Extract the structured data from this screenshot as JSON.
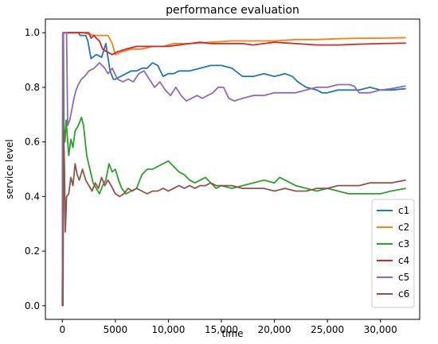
{
  "chart_data": {
    "type": "line",
    "title": "performance evaluation",
    "xlabel": "time",
    "ylabel": "service level",
    "xlim": [
      -1600,
      33700
    ],
    "ylim": [
      -0.05,
      1.05
    ],
    "x_ticks": [
      0,
      5000,
      10000,
      15000,
      20000,
      25000,
      30000
    ],
    "x_tick_labels": [
      "0",
      "5000",
      "10,000",
      "15,000",
      "20,000",
      "25,000",
      "30,000"
    ],
    "y_ticks": [
      0.0,
      0.2,
      0.4,
      0.6,
      0.8,
      1.0
    ],
    "y_tick_labels": [
      "0.0",
      "0.2",
      "0.4",
      "0.6",
      "0.8",
      "1.0"
    ],
    "grid": false,
    "legend_position": "lower-right",
    "series": [
      {
        "name": "c1",
        "color": "#1f77b4",
        "points": [
          [
            0,
            0.0
          ],
          [
            60,
            1.0
          ],
          [
            1500,
            1.0
          ],
          [
            1700,
            0.99
          ],
          [
            2200,
            0.99
          ],
          [
            2400,
            0.97
          ],
          [
            2700,
            0.905
          ],
          [
            3200,
            0.92
          ],
          [
            3700,
            0.91
          ],
          [
            4100,
            0.96
          ],
          [
            4500,
            0.86
          ],
          [
            4800,
            0.83
          ],
          [
            5000,
            0.83
          ],
          [
            5500,
            0.84
          ],
          [
            6000,
            0.85
          ],
          [
            6500,
            0.86
          ],
          [
            7000,
            0.86
          ],
          [
            7500,
            0.87
          ],
          [
            8000,
            0.87
          ],
          [
            8500,
            0.89
          ],
          [
            9000,
            0.88
          ],
          [
            9500,
            0.84
          ],
          [
            10000,
            0.85
          ],
          [
            10500,
            0.85
          ],
          [
            11000,
            0.86
          ],
          [
            12000,
            0.86
          ],
          [
            13000,
            0.87
          ],
          [
            14000,
            0.88
          ],
          [
            15000,
            0.88
          ],
          [
            16000,
            0.87
          ],
          [
            17000,
            0.84
          ],
          [
            18000,
            0.84
          ],
          [
            19000,
            0.85
          ],
          [
            20000,
            0.84
          ],
          [
            21000,
            0.85
          ],
          [
            21700,
            0.84
          ],
          [
            22200,
            0.82
          ],
          [
            23000,
            0.8
          ],
          [
            24000,
            0.79
          ],
          [
            24500,
            0.78
          ],
          [
            25000,
            0.78
          ],
          [
            26000,
            0.79
          ],
          [
            27000,
            0.79
          ],
          [
            28000,
            0.79
          ],
          [
            29000,
            0.8
          ],
          [
            30000,
            0.79
          ],
          [
            31000,
            0.79
          ],
          [
            32400,
            0.795
          ]
        ]
      },
      {
        "name": "c2",
        "color": "#ff7f0e",
        "points": [
          [
            0,
            0.0
          ],
          [
            60,
            1.0
          ],
          [
            2000,
            1.0
          ],
          [
            3000,
            0.99
          ],
          [
            3800,
            0.99
          ],
          [
            4300,
            0.99
          ],
          [
            4700,
            0.96
          ],
          [
            5000,
            0.92
          ],
          [
            5600,
            0.93
          ],
          [
            6500,
            0.94
          ],
          [
            7500,
            0.94
          ],
          [
            8500,
            0.95
          ],
          [
            9500,
            0.95
          ],
          [
            10500,
            0.96
          ],
          [
            12000,
            0.96
          ],
          [
            14000,
            0.965
          ],
          [
            16000,
            0.97
          ],
          [
            18000,
            0.97
          ],
          [
            20000,
            0.97
          ],
          [
            22000,
            0.975
          ],
          [
            24000,
            0.975
          ],
          [
            26000,
            0.978
          ],
          [
            28000,
            0.98
          ],
          [
            30000,
            0.98
          ],
          [
            32400,
            0.982
          ]
        ]
      },
      {
        "name": "c3",
        "color": "#2ca02c",
        "points": [
          [
            0,
            0.0
          ],
          [
            30,
            1.0
          ],
          [
            100,
            1.0
          ],
          [
            150,
            0.65
          ],
          [
            250,
            0.6
          ],
          [
            350,
            0.68
          ],
          [
            450,
            0.63
          ],
          [
            600,
            0.55
          ],
          [
            800,
            0.61
          ],
          [
            1000,
            0.58
          ],
          [
            1200,
            0.64
          ],
          [
            1500,
            0.66
          ],
          [
            1800,
            0.69
          ],
          [
            2000,
            0.66
          ],
          [
            2300,
            0.55
          ],
          [
            2600,
            0.5
          ],
          [
            2900,
            0.45
          ],
          [
            3200,
            0.43
          ],
          [
            3500,
            0.41
          ],
          [
            3800,
            0.44
          ],
          [
            4100,
            0.46
          ],
          [
            4400,
            0.52
          ],
          [
            4700,
            0.49
          ],
          [
            5000,
            0.5
          ],
          [
            5300,
            0.46
          ],
          [
            5600,
            0.43
          ],
          [
            6000,
            0.41
          ],
          [
            6500,
            0.42
          ],
          [
            7000,
            0.43
          ],
          [
            7500,
            0.48
          ],
          [
            8000,
            0.5
          ],
          [
            8500,
            0.5
          ],
          [
            9000,
            0.51
          ],
          [
            9500,
            0.52
          ],
          [
            10000,
            0.53
          ],
          [
            10500,
            0.51
          ],
          [
            11000,
            0.49
          ],
          [
            11500,
            0.48
          ],
          [
            12000,
            0.46
          ],
          [
            12500,
            0.45
          ],
          [
            13000,
            0.46
          ],
          [
            13500,
            0.47
          ],
          [
            14000,
            0.45
          ],
          [
            14500,
            0.43
          ],
          [
            15000,
            0.44
          ],
          [
            16000,
            0.43
          ],
          [
            17000,
            0.44
          ],
          [
            18000,
            0.45
          ],
          [
            19000,
            0.46
          ],
          [
            20000,
            0.45
          ],
          [
            20500,
            0.47
          ],
          [
            21000,
            0.46
          ],
          [
            21500,
            0.45
          ],
          [
            22000,
            0.44
          ],
          [
            23000,
            0.43
          ],
          [
            24000,
            0.42
          ],
          [
            25000,
            0.43
          ],
          [
            26000,
            0.42
          ],
          [
            27000,
            0.41
          ],
          [
            28000,
            0.41
          ],
          [
            29000,
            0.41
          ],
          [
            30000,
            0.41
          ],
          [
            31000,
            0.42
          ],
          [
            32400,
            0.43
          ]
        ]
      },
      {
        "name": "c4",
        "color": "#d62728",
        "points": [
          [
            0,
            0.0
          ],
          [
            80,
            1.0
          ],
          [
            2500,
            1.0
          ],
          [
            2700,
            0.98
          ],
          [
            3000,
            0.99
          ],
          [
            3200,
            0.98
          ],
          [
            3500,
            0.97
          ],
          [
            3800,
            0.94
          ],
          [
            4200,
            0.93
          ],
          [
            4700,
            0.92
          ],
          [
            5200,
            0.93
          ],
          [
            6000,
            0.94
          ],
          [
            7000,
            0.95
          ],
          [
            8000,
            0.95
          ],
          [
            9000,
            0.95
          ],
          [
            10000,
            0.95
          ],
          [
            11000,
            0.955
          ],
          [
            12000,
            0.96
          ],
          [
            13000,
            0.965
          ],
          [
            14000,
            0.96
          ],
          [
            15000,
            0.96
          ],
          [
            16000,
            0.96
          ],
          [
            17000,
            0.96
          ],
          [
            18000,
            0.955
          ],
          [
            19000,
            0.96
          ],
          [
            20000,
            0.965
          ],
          [
            22000,
            0.96
          ],
          [
            24000,
            0.955
          ],
          [
            26000,
            0.955
          ],
          [
            28000,
            0.958
          ],
          [
            30000,
            0.96
          ],
          [
            32400,
            0.962
          ]
        ]
      },
      {
        "name": "c5",
        "color": "#9467bd",
        "points": [
          [
            0,
            0.0
          ],
          [
            60,
            1.0
          ],
          [
            400,
            1.0
          ],
          [
            500,
            0.66
          ],
          [
            700,
            0.68
          ],
          [
            900,
            0.72
          ],
          [
            1100,
            0.76
          ],
          [
            1300,
            0.79
          ],
          [
            1500,
            0.81
          ],
          [
            1800,
            0.83
          ],
          [
            2100,
            0.84
          ],
          [
            2500,
            0.86
          ],
          [
            3000,
            0.87
          ],
          [
            3500,
            0.89
          ],
          [
            4000,
            0.87
          ],
          [
            4300,
            0.85
          ],
          [
            4700,
            0.87
          ],
          [
            5200,
            0.83
          ],
          [
            5700,
            0.82
          ],
          [
            6200,
            0.83
          ],
          [
            6700,
            0.82
          ],
          [
            7200,
            0.85
          ],
          [
            7700,
            0.86
          ],
          [
            8200,
            0.83
          ],
          [
            8700,
            0.8
          ],
          [
            9200,
            0.82
          ],
          [
            9700,
            0.79
          ],
          [
            10200,
            0.77
          ],
          [
            10700,
            0.8
          ],
          [
            11200,
            0.77
          ],
          [
            11700,
            0.75
          ],
          [
            12200,
            0.76
          ],
          [
            12700,
            0.77
          ],
          [
            13200,
            0.76
          ],
          [
            13700,
            0.77
          ],
          [
            14200,
            0.78
          ],
          [
            14700,
            0.8
          ],
          [
            15200,
            0.8
          ],
          [
            15700,
            0.76
          ],
          [
            16200,
            0.75
          ],
          [
            17000,
            0.76
          ],
          [
            18000,
            0.77
          ],
          [
            19000,
            0.77
          ],
          [
            20000,
            0.78
          ],
          [
            21000,
            0.78
          ],
          [
            22000,
            0.78
          ],
          [
            23000,
            0.79
          ],
          [
            24000,
            0.8
          ],
          [
            25000,
            0.8
          ],
          [
            26000,
            0.81
          ],
          [
            27000,
            0.81
          ],
          [
            27500,
            0.805
          ],
          [
            28000,
            0.78
          ],
          [
            29000,
            0.78
          ],
          [
            30000,
            0.79
          ],
          [
            31000,
            0.795
          ],
          [
            32400,
            0.805
          ]
        ]
      },
      {
        "name": "c6",
        "color": "#8c564b",
        "points": [
          [
            0,
            0.0
          ],
          [
            60,
            0.0
          ],
          [
            120,
            0.64
          ],
          [
            200,
            0.5
          ],
          [
            280,
            0.27
          ],
          [
            400,
            0.4
          ],
          [
            600,
            0.41
          ],
          [
            800,
            0.47
          ],
          [
            1000,
            0.44
          ],
          [
            1200,
            0.52
          ],
          [
            1400,
            0.48
          ],
          [
            1600,
            0.46
          ],
          [
            1900,
            0.5
          ],
          [
            2200,
            0.46
          ],
          [
            2500,
            0.44
          ],
          [
            2800,
            0.42
          ],
          [
            3100,
            0.45
          ],
          [
            3400,
            0.43
          ],
          [
            3700,
            0.47
          ],
          [
            4000,
            0.44
          ],
          [
            4300,
            0.46
          ],
          [
            4600,
            0.44
          ],
          [
            5000,
            0.41
          ],
          [
            5400,
            0.4
          ],
          [
            5800,
            0.41
          ],
          [
            6200,
            0.43
          ],
          [
            6600,
            0.42
          ],
          [
            7000,
            0.43
          ],
          [
            7500,
            0.42
          ],
          [
            8000,
            0.41
          ],
          [
            8500,
            0.42
          ],
          [
            9000,
            0.42
          ],
          [
            9500,
            0.43
          ],
          [
            10000,
            0.42
          ],
          [
            10500,
            0.43
          ],
          [
            11000,
            0.44
          ],
          [
            11500,
            0.43
          ],
          [
            12000,
            0.44
          ],
          [
            12500,
            0.43
          ],
          [
            13000,
            0.44
          ],
          [
            13500,
            0.44
          ],
          [
            14000,
            0.45
          ],
          [
            14500,
            0.44
          ],
          [
            15000,
            0.44
          ],
          [
            16000,
            0.44
          ],
          [
            17000,
            0.43
          ],
          [
            18000,
            0.43
          ],
          [
            19000,
            0.43
          ],
          [
            20000,
            0.42
          ],
          [
            21000,
            0.43
          ],
          [
            22000,
            0.42
          ],
          [
            23000,
            0.42
          ],
          [
            24000,
            0.43
          ],
          [
            25000,
            0.43
          ],
          [
            26000,
            0.44
          ],
          [
            27000,
            0.44
          ],
          [
            28000,
            0.44
          ],
          [
            29000,
            0.45
          ],
          [
            30000,
            0.45
          ],
          [
            31000,
            0.45
          ],
          [
            32400,
            0.46
          ]
        ]
      }
    ]
  }
}
